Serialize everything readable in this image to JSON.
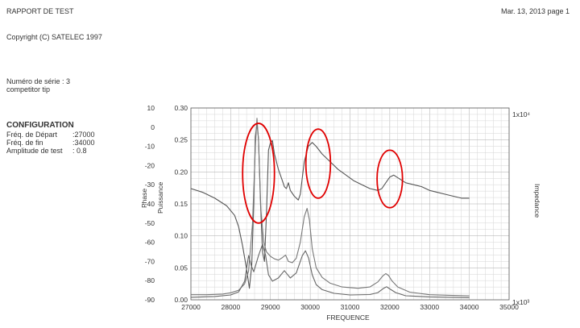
{
  "header": {
    "report_title": "RAPPORT DE TEST",
    "date_page": "Mar. 13, 2013  page 1",
    "copyright": "Copyright (C) SATELEC 1997"
  },
  "info": {
    "serial": "Numéro de série : 3",
    "tip": "competitor tip"
  },
  "configuration": {
    "title": "CONFIGURATION",
    "rows": [
      {
        "label": "Fréq. de Départ",
        "value": ":27000"
      },
      {
        "label": "Fréq. de fin",
        "value": ":34000"
      },
      {
        "label": "Amplitude de test",
        "value": ": 0.8"
      }
    ]
  },
  "chart_data": {
    "type": "line",
    "xlabel": "FREQUENCE",
    "x_ticks": [
      "27000",
      "28000",
      "29000",
      "30000",
      "31000",
      "32000",
      "33000",
      "34000",
      "35000"
    ],
    "xlim": [
      27000,
      35000
    ],
    "phase_axis": {
      "label": "Phase",
      "ticks": [
        "10",
        "0",
        "-10",
        "-20",
        "-30",
        "-40",
        "-50",
        "-60",
        "-70",
        "-80",
        "-90"
      ],
      "range": [
        -90,
        10
      ]
    },
    "power_axis": {
      "label": "Puissance",
      "ticks": [
        "0.30",
        "0.25",
        "0.20",
        "0.15",
        "0.10",
        "0.05",
        "0.00"
      ],
      "range": [
        0,
        0.3
      ]
    },
    "impedance_axis": {
      "label": "Impedance",
      "top_label": "1x10⁴",
      "bottom_label": "1x10³",
      "scale": "log",
      "range": [
        1000,
        10000
      ]
    },
    "grid": true,
    "series": [
      {
        "axis": "phase",
        "color": "#555555",
        "points": [
          [
            27000,
            -32
          ],
          [
            27300,
            -34
          ],
          [
            27600,
            -37
          ],
          [
            27900,
            -41
          ],
          [
            28100,
            -46
          ],
          [
            28200,
            -52
          ],
          [
            28300,
            -62
          ],
          [
            28400,
            -74
          ],
          [
            28470,
            -84
          ],
          [
            28530,
            -72
          ],
          [
            28580,
            -40
          ],
          [
            28620,
            -5
          ],
          [
            28660,
            2
          ],
          [
            28700,
            -6
          ],
          [
            28750,
            -40
          ],
          [
            28800,
            -65
          ],
          [
            28850,
            -70
          ],
          [
            28900,
            -45
          ],
          [
            28950,
            -12
          ],
          [
            29000,
            -8
          ],
          [
            29050,
            -7
          ],
          [
            29100,
            -14
          ],
          [
            29200,
            -22
          ],
          [
            29300,
            -28
          ],
          [
            29350,
            -31
          ],
          [
            29400,
            -32
          ],
          [
            29450,
            -29
          ],
          [
            29500,
            -33
          ],
          [
            29600,
            -36
          ],
          [
            29700,
            -38
          ],
          [
            29750,
            -35
          ],
          [
            29850,
            -18
          ],
          [
            29950,
            -10
          ],
          [
            30050,
            -8
          ],
          [
            30150,
            -10
          ],
          [
            30300,
            -14
          ],
          [
            30500,
            -18
          ],
          [
            30700,
            -22
          ],
          [
            30900,
            -25
          ],
          [
            31100,
            -28
          ],
          [
            31300,
            -30
          ],
          [
            31500,
            -32
          ],
          [
            31700,
            -33
          ],
          [
            31800,
            -32
          ],
          [
            31900,
            -29
          ],
          [
            32000,
            -26
          ],
          [
            32100,
            -25
          ],
          [
            32250,
            -27
          ],
          [
            32400,
            -29
          ],
          [
            32600,
            -30
          ],
          [
            32800,
            -31
          ],
          [
            33000,
            -33
          ],
          [
            33200,
            -34
          ],
          [
            33400,
            -35
          ],
          [
            33600,
            -36
          ],
          [
            33800,
            -37
          ],
          [
            34000,
            -37
          ]
        ]
      },
      {
        "axis": "power",
        "color": "#777777",
        "points": [
          [
            27000,
            0.008
          ],
          [
            27400,
            0.008
          ],
          [
            27800,
            0.009
          ],
          [
            28000,
            0.011
          ],
          [
            28200,
            0.015
          ],
          [
            28350,
            0.025
          ],
          [
            28450,
            0.045
          ],
          [
            28550,
            0.12
          ],
          [
            28620,
            0.24
          ],
          [
            28660,
            0.284
          ],
          [
            28700,
            0.25
          ],
          [
            28760,
            0.14
          ],
          [
            28830,
            0.09
          ],
          [
            28900,
            0.075
          ],
          [
            29000,
            0.068
          ],
          [
            29100,
            0.064
          ],
          [
            29200,
            0.062
          ],
          [
            29300,
            0.066
          ],
          [
            29380,
            0.07
          ],
          [
            29450,
            0.06
          ],
          [
            29550,
            0.058
          ],
          [
            29650,
            0.065
          ],
          [
            29750,
            0.09
          ],
          [
            29850,
            0.13
          ],
          [
            29920,
            0.143
          ],
          [
            29980,
            0.125
          ],
          [
            30050,
            0.08
          ],
          [
            30150,
            0.05
          ],
          [
            30300,
            0.035
          ],
          [
            30500,
            0.026
          ],
          [
            30800,
            0.02
          ],
          [
            31200,
            0.018
          ],
          [
            31500,
            0.02
          ],
          [
            31700,
            0.028
          ],
          [
            31820,
            0.037
          ],
          [
            31900,
            0.041
          ],
          [
            31970,
            0.038
          ],
          [
            32050,
            0.03
          ],
          [
            32200,
            0.02
          ],
          [
            32500,
            0.012
          ],
          [
            33000,
            0.008
          ],
          [
            34000,
            0.006
          ]
        ]
      },
      {
        "axis": "impedance",
        "color": "#666666",
        "points": [
          [
            27000,
            1030
          ],
          [
            27600,
            1040
          ],
          [
            28000,
            1060
          ],
          [
            28200,
            1100
          ],
          [
            28350,
            1250
          ],
          [
            28450,
            1700
          ],
          [
            28520,
            1500
          ],
          [
            28580,
            1400
          ],
          [
            28700,
            1700
          ],
          [
            28800,
            1950
          ],
          [
            28880,
            1700
          ],
          [
            28950,
            1350
          ],
          [
            29050,
            1250
          ],
          [
            29200,
            1300
          ],
          [
            29350,
            1420
          ],
          [
            29420,
            1360
          ],
          [
            29500,
            1300
          ],
          [
            29650,
            1380
          ],
          [
            29800,
            1700
          ],
          [
            29880,
            1800
          ],
          [
            29960,
            1650
          ],
          [
            30050,
            1350
          ],
          [
            30150,
            1200
          ],
          [
            30300,
            1130
          ],
          [
            30600,
            1080
          ],
          [
            31000,
            1060
          ],
          [
            31500,
            1065
          ],
          [
            31700,
            1090
          ],
          [
            31850,
            1150
          ],
          [
            31920,
            1170
          ],
          [
            32000,
            1140
          ],
          [
            32150,
            1090
          ],
          [
            32400,
            1050
          ],
          [
            33000,
            1035
          ],
          [
            34000,
            1025
          ]
        ]
      }
    ],
    "annotations": [
      {
        "type": "ellipse",
        "color": "#e00000",
        "cx": 28700,
        "cy_phase": -24,
        "rx_freq": 400,
        "ry_phase": 26
      },
      {
        "type": "ellipse",
        "color": "#e00000",
        "cx": 30200,
        "cy_phase": -19,
        "rx_freq": 310,
        "ry_phase": 18
      },
      {
        "type": "ellipse",
        "color": "#e00000",
        "cx": 32000,
        "cy_phase": -27,
        "rx_freq": 320,
        "ry_phase": 15
      }
    ]
  }
}
